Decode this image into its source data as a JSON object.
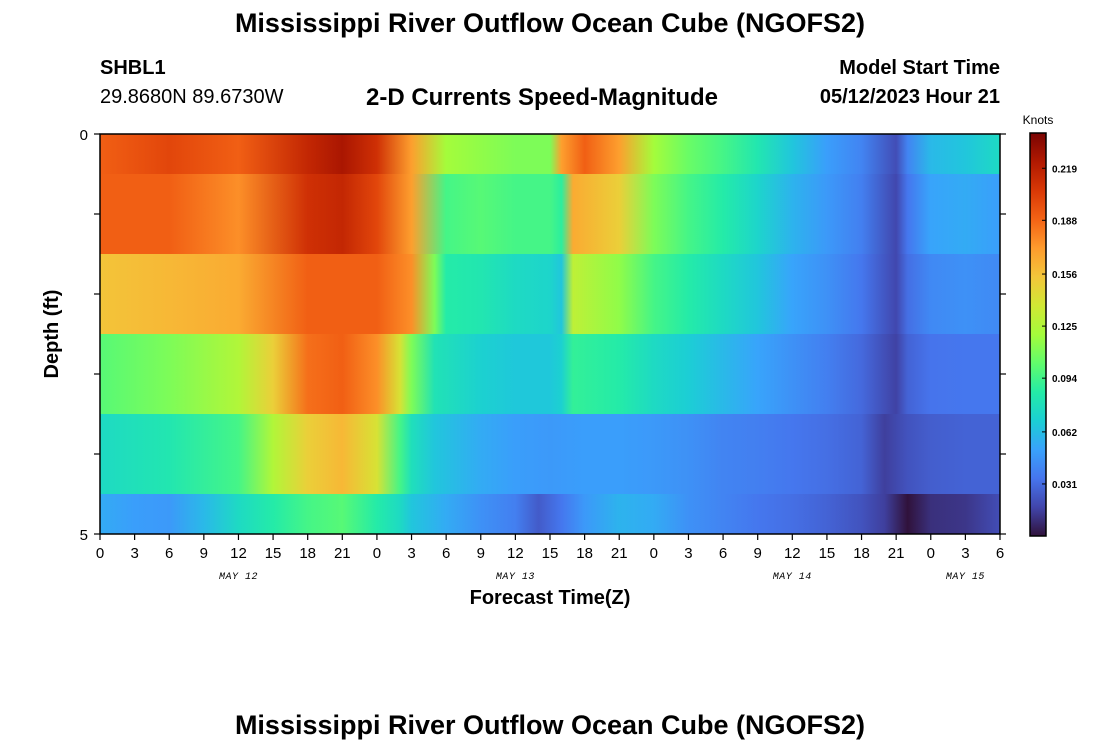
{
  "header": {
    "title": "Mississippi River Outflow Ocean Cube (NGOFS2)",
    "station_id": "SHBL1",
    "station_coords": "29.8680N  89.6730W",
    "subtitle": "2-D Currents Speed-Magnitude",
    "model_start_label": "Model Start Time",
    "model_start_value": "05/12/2023 Hour 21"
  },
  "footer": {
    "title": "Mississippi River Outflow Ocean Cube (NGOFS2)"
  },
  "chart_data": {
    "type": "heatmap",
    "title": "2-D Currents Speed-Magnitude",
    "xlabel": "Forecast Time(Z)",
    "ylabel": "Depth (ft)",
    "colorbar_unit": "Knots",
    "colorbar_ticks": [
      "0.219",
      "0.188",
      "0.156",
      "0.125",
      "0.094",
      "0.062",
      "0.031"
    ],
    "colorbar_tick_values": [
      0.219,
      0.188,
      0.156,
      0.125,
      0.094,
      0.062,
      0.031
    ],
    "value_range": [
      0.0,
      0.24
    ],
    "colors": [
      "#30123b",
      "#4145ab",
      "#4675ed",
      "#39a2fc",
      "#1bcfd4",
      "#24eca6",
      "#61fc6c",
      "#a4fc3b",
      "#d1e834",
      "#f3c63a",
      "#fe9b2d",
      "#f36315",
      "#d93806",
      "#b11901",
      "#7a0403"
    ],
    "x_tick_labels": [
      "0",
      "3",
      "6",
      "9",
      "12",
      "15",
      "18",
      "21",
      "0",
      "3",
      "6",
      "9",
      "12",
      "15",
      "18",
      "21",
      "0",
      "3",
      "6",
      "9",
      "12",
      "15",
      "18",
      "21",
      "0",
      "3",
      "6"
    ],
    "x_hours": [
      0,
      3,
      6,
      9,
      12,
      15,
      18,
      21,
      24,
      27,
      30,
      33,
      36,
      39,
      42,
      45,
      48,
      51,
      54,
      57,
      60,
      63,
      66,
      69,
      72,
      75,
      78
    ],
    "x_range": [
      0,
      78
    ],
    "date_labels": [
      {
        "text": "MAY 12",
        "hour": 12
      },
      {
        "text": "MAY 13",
        "hour": 36
      },
      {
        "text": "MAY 14",
        "hour": 60
      },
      {
        "text": "MAY 15",
        "hour": 75
      }
    ],
    "y_tick_labels": [
      "0",
      "5"
    ],
    "y_range": [
      0,
      5
    ],
    "depth_layers": [
      "layer-1",
      "layer-2",
      "layer-3",
      "layer-4",
      "layer-5",
      "layer-6"
    ],
    "layer_bounds": [
      0,
      0.5,
      1.5,
      2.5,
      3.5,
      4.5,
      5
    ],
    "profiles": [
      [
        [
          0,
          0.19
        ],
        [
          6,
          0.2
        ],
        [
          12,
          0.19
        ],
        [
          18,
          0.215
        ],
        [
          21,
          0.225
        ],
        [
          24,
          0.21
        ],
        [
          27,
          0.17
        ],
        [
          30,
          0.12
        ],
        [
          33,
          0.115
        ],
        [
          36,
          0.11
        ],
        [
          39,
          0.11
        ],
        [
          40,
          0.17
        ],
        [
          42,
          0.19
        ],
        [
          45,
          0.17
        ],
        [
          48,
          0.12
        ],
        [
          51,
          0.105
        ],
        [
          54,
          0.095
        ],
        [
          57,
          0.082
        ],
        [
          60,
          0.065
        ],
        [
          63,
          0.05
        ],
        [
          66,
          0.04
        ],
        [
          69,
          0.02
        ],
        [
          70,
          0.04
        ],
        [
          72,
          0.06
        ],
        [
          75,
          0.065
        ],
        [
          78,
          0.075
        ]
      ],
      [
        [
          0,
          0.19
        ],
        [
          6,
          0.19
        ],
        [
          12,
          0.175
        ],
        [
          18,
          0.21
        ],
        [
          21,
          0.215
        ],
        [
          24,
          0.2
        ],
        [
          27,
          0.17
        ],
        [
          30,
          0.095
        ],
        [
          33,
          0.1
        ],
        [
          36,
          0.095
        ],
        [
          39,
          0.095
        ],
        [
          40,
          0.088
        ],
        [
          41,
          0.165
        ],
        [
          45,
          0.15
        ],
        [
          48,
          0.11
        ],
        [
          51,
          0.095
        ],
        [
          54,
          0.085
        ],
        [
          57,
          0.072
        ],
        [
          60,
          0.058
        ],
        [
          63,
          0.048
        ],
        [
          66,
          0.038
        ],
        [
          69,
          0.018
        ],
        [
          70,
          0.035
        ],
        [
          72,
          0.052
        ],
        [
          75,
          0.055
        ],
        [
          78,
          0.05
        ]
      ],
      [
        [
          0,
          0.155
        ],
        [
          6,
          0.16
        ],
        [
          12,
          0.165
        ],
        [
          18,
          0.19
        ],
        [
          21,
          0.19
        ],
        [
          24,
          0.19
        ],
        [
          27,
          0.175
        ],
        [
          29,
          0.11
        ],
        [
          30,
          0.085
        ],
        [
          33,
          0.082
        ],
        [
          36,
          0.075
        ],
        [
          39,
          0.072
        ],
        [
          40,
          0.065
        ],
        [
          41,
          0.13
        ],
        [
          45,
          0.115
        ],
        [
          48,
          0.095
        ],
        [
          51,
          0.085
        ],
        [
          54,
          0.075
        ],
        [
          57,
          0.065
        ],
        [
          60,
          0.052
        ],
        [
          63,
          0.045
        ],
        [
          66,
          0.035
        ],
        [
          69,
          0.018
        ],
        [
          70,
          0.032
        ],
        [
          72,
          0.042
        ],
        [
          75,
          0.045
        ],
        [
          78,
          0.042
        ]
      ],
      [
        [
          0,
          0.1
        ],
        [
          6,
          0.11
        ],
        [
          12,
          0.125
        ],
        [
          15,
          0.15
        ],
        [
          18,
          0.185
        ],
        [
          21,
          0.19
        ],
        [
          24,
          0.175
        ],
        [
          26,
          0.14
        ],
        [
          27,
          0.11
        ],
        [
          29,
          0.08
        ],
        [
          33,
          0.07
        ],
        [
          36,
          0.066
        ],
        [
          39,
          0.066
        ],
        [
          40,
          0.07
        ],
        [
          41,
          0.09
        ],
        [
          45,
          0.085
        ],
        [
          48,
          0.075
        ],
        [
          51,
          0.068
        ],
        [
          54,
          0.06
        ],
        [
          57,
          0.052
        ],
        [
          60,
          0.045
        ],
        [
          63,
          0.038
        ],
        [
          66,
          0.03
        ],
        [
          69,
          0.016
        ],
        [
          70,
          0.028
        ],
        [
          72,
          0.034
        ],
        [
          75,
          0.035
        ],
        [
          78,
          0.035
        ]
      ],
      [
        [
          0,
          0.075
        ],
        [
          6,
          0.082
        ],
        [
          12,
          0.095
        ],
        [
          15,
          0.125
        ],
        [
          18,
          0.15
        ],
        [
          21,
          0.16
        ],
        [
          24,
          0.14
        ],
        [
          26,
          0.095
        ],
        [
          27,
          0.078
        ],
        [
          29,
          0.065
        ],
        [
          33,
          0.055
        ],
        [
          36,
          0.05
        ],
        [
          39,
          0.048
        ],
        [
          42,
          0.05
        ],
        [
          45,
          0.05
        ],
        [
          48,
          0.048
        ],
        [
          51,
          0.045
        ],
        [
          54,
          0.04
        ],
        [
          57,
          0.038
        ],
        [
          60,
          0.035
        ],
        [
          63,
          0.032
        ],
        [
          66,
          0.028
        ],
        [
          68,
          0.015
        ],
        [
          70,
          0.022
        ],
        [
          72,
          0.026
        ],
        [
          75,
          0.028
        ],
        [
          78,
          0.028
        ]
      ],
      [
        [
          0,
          0.055
        ],
        [
          3,
          0.05
        ],
        [
          6,
          0.048
        ],
        [
          9,
          0.06
        ],
        [
          12,
          0.075
        ],
        [
          15,
          0.085
        ],
        [
          18,
          0.095
        ],
        [
          21,
          0.1
        ],
        [
          24,
          0.085
        ],
        [
          26,
          0.075
        ],
        [
          27,
          0.065
        ],
        [
          30,
          0.055
        ],
        [
          33,
          0.045
        ],
        [
          36,
          0.038
        ],
        [
          38,
          0.025
        ],
        [
          40,
          0.035
        ],
        [
          42,
          0.048
        ],
        [
          45,
          0.058
        ],
        [
          48,
          0.055
        ],
        [
          51,
          0.045
        ],
        [
          54,
          0.04
        ],
        [
          57,
          0.035
        ],
        [
          60,
          0.032
        ],
        [
          63,
          0.028
        ],
        [
          66,
          0.022
        ],
        [
          68,
          0.015
        ],
        [
          70,
          0.0
        ],
        [
          72,
          0.01
        ],
        [
          75,
          0.012
        ],
        [
          78,
          0.02
        ]
      ]
    ]
  }
}
